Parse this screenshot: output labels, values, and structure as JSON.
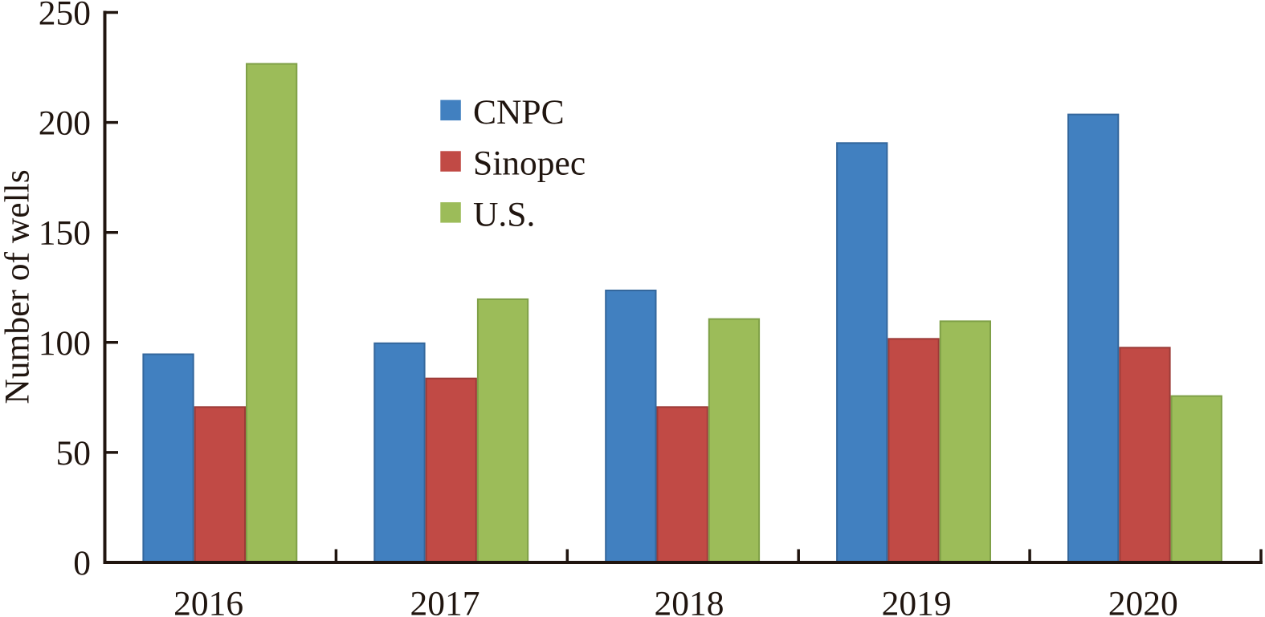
{
  "figure": {
    "background": "#ffffff",
    "axis_color": "#20150f",
    "text_color": "#20150f"
  },
  "chart_data": {
    "type": "bar",
    "title": "",
    "xlabel": "",
    "ylabel": "Number of wells",
    "categories": [
      "2016",
      "2017",
      "2018",
      "2019",
      "2020"
    ],
    "series": [
      {
        "name": "CNPC",
        "color": "#4180c0",
        "edge_color": "#34679c",
        "values": [
          95,
          100,
          124,
          191,
          204
        ]
      },
      {
        "name": "Sinopec",
        "color": "#c14a45",
        "edge_color": "#9c3b38",
        "values": [
          71,
          84,
          71,
          102,
          98
        ]
      },
      {
        "name": "U.S.",
        "color": "#9cbc59",
        "edge_color": "#7fa047",
        "values": [
          227,
          120,
          111,
          110,
          76
        ]
      }
    ],
    "ylim": [
      0,
      250
    ],
    "yticks": [
      0,
      50,
      100,
      150,
      200,
      250
    ],
    "grid": false,
    "legend_position": "upper-left-of-center"
  }
}
